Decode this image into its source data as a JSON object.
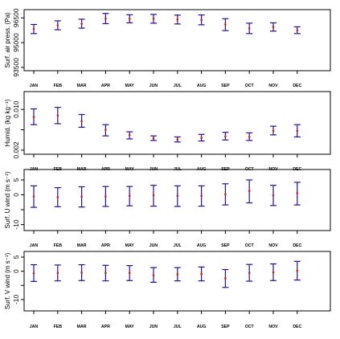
{
  "chart_data": [
    {
      "type": "scatter",
      "ylabel": "Surf. air press. (Pa)",
      "categories": [
        "JAN",
        "FEB",
        "MAR",
        "APR",
        "MAY",
        "JUN",
        "JUL",
        "AUG",
        "SEP",
        "OCT",
        "NOV",
        "DEC"
      ],
      "yticks": [
        93500,
        95000,
        96500
      ],
      "ytick_labels": [
        "93500",
        "95000",
        "96500"
      ],
      "ylim": [
        93300,
        97000
      ],
      "grid": false,
      "series": [
        {
          "values": [
            95830,
            96050,
            96150,
            96460,
            96440,
            96450,
            96400,
            96380,
            96100,
            95860,
            95950,
            95750
          ],
          "lower": [
            95550,
            95780,
            95880,
            96150,
            96200,
            96180,
            96130,
            96080,
            95730,
            95550,
            95700,
            95550
          ],
          "upper": [
            96100,
            96320,
            96420,
            96770,
            96690,
            96710,
            96670,
            96680,
            96450,
            96180,
            96200,
            95960
          ]
        }
      ],
      "colors": {
        "point": "#cc2200",
        "errorbar": "#2a0f8a"
      }
    },
    {
      "type": "scatter",
      "ylabel": "Humid. (kg kg⁻¹)",
      "categories": [
        "JAN",
        "FEB",
        "MAR",
        "APR",
        "MAY",
        "JUN",
        "JUL",
        "AUG",
        "SEP",
        "OCT",
        "NOV",
        "DEC"
      ],
      "yticks": [
        0.002,
        0.006,
        0.01
      ],
      "ytick_labels": [
        "0.002",
        "",
        "0.010"
      ],
      "ylim": [
        0.0012,
        0.0135
      ],
      "grid": false,
      "series": [
        {
          "values": [
            0.0085,
            0.0088,
            0.0077,
            0.006,
            0.005,
            0.0043,
            0.0041,
            0.0044,
            0.0047,
            0.0046,
            0.0058,
            0.0058
          ],
          "lower": [
            0.007,
            0.0072,
            0.0065,
            0.0048,
            0.0042,
            0.0039,
            0.0036,
            0.0038,
            0.004,
            0.0039,
            0.005,
            0.0046
          ],
          "upper": [
            0.0101,
            0.0104,
            0.009,
            0.007,
            0.0056,
            0.0048,
            0.0046,
            0.0051,
            0.0055,
            0.0054,
            0.0067,
            0.007
          ]
        }
      ],
      "colors": {
        "point": "#cc2200",
        "errorbar": "#2a0f8a"
      }
    },
    {
      "type": "scatter",
      "ylabel": "Surf. U wind (m s⁻¹)",
      "categories": [
        "JAN",
        "FEB",
        "MAR",
        "APR",
        "MAY",
        "JUN",
        "JUL",
        "AUG",
        "SEP",
        "OCT",
        "NOV",
        "DEC"
      ],
      "yticks": [
        -10,
        -5,
        0,
        5
      ],
      "ytick_labels": [
        "-10",
        "",
        "0",
        "5"
      ],
      "ylim": [
        -12,
        8.5
      ],
      "grid": false,
      "series": [
        {
          "values": [
            -0.5,
            -0.8,
            -0.6,
            -0.5,
            -0.3,
            -0.1,
            -0.3,
            -0.3,
            0.2,
            1.3,
            -0.2,
            0.6
          ],
          "lower": [
            -4.2,
            -4.0,
            -4.1,
            -3.9,
            -3.7,
            -3.8,
            -3.9,
            -3.8,
            -3.4,
            -2.7,
            -3.6,
            -3.4
          ],
          "upper": [
            3.0,
            2.4,
            2.7,
            2.8,
            2.8,
            3.2,
            3.0,
            3.0,
            3.7,
            5.0,
            3.2,
            4.2
          ]
        }
      ],
      "colors": {
        "point": "#cc2200",
        "errorbar": "#2a0f8a"
      }
    },
    {
      "type": "scatter",
      "ylabel": "Surf. V wind (m s⁻¹)",
      "categories": [
        "JAN",
        "FEB",
        "MAR",
        "APR",
        "MAY",
        "JUN",
        "JUL",
        "AUG",
        "SEP",
        "OCT",
        "NOV",
        "DEC"
      ],
      "yticks": [
        -10,
        -5,
        0,
        5
      ],
      "ytick_labels": [
        "-10",
        "",
        "0",
        "5"
      ],
      "ylim": [
        -14,
        7
      ],
      "grid": false,
      "series": [
        {
          "values": [
            -0.7,
            -0.6,
            -0.5,
            -0.6,
            -0.6,
            -1.4,
            -1.1,
            -0.9,
            -2.5,
            -0.6,
            -0.4,
            0.2
          ],
          "lower": [
            -3.6,
            -3.4,
            -3.3,
            -3.4,
            -3.3,
            -3.9,
            -3.4,
            -3.4,
            -5.7,
            -3.5,
            -3.3,
            -3.1
          ],
          "upper": [
            2.3,
            2.2,
            2.3,
            2.1,
            2.0,
            1.3,
            1.3,
            1.5,
            0.6,
            2.4,
            2.6,
            3.5
          ]
        }
      ],
      "colors": {
        "point": "#cc2200",
        "errorbar": "#2a0f8a"
      }
    }
  ]
}
